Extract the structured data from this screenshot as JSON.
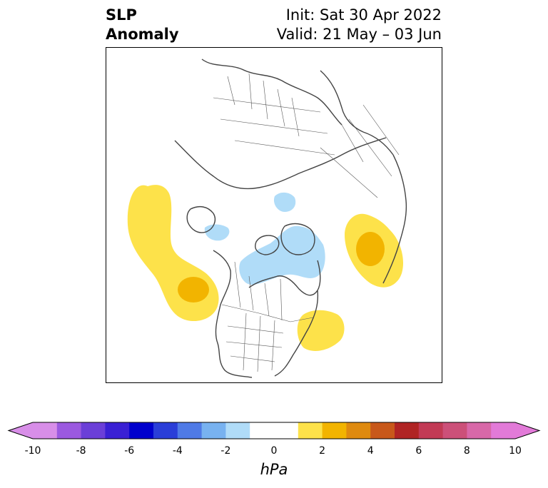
{
  "title": {
    "left_line1": "SLP",
    "left_line2": "Anomaly",
    "right_line1": "Init: Sat 30 Apr 2022",
    "right_line2": "Valid: 21 May – 03 Jun"
  },
  "colorbar": {
    "units": "hPa",
    "ticks": [
      "-10",
      "-8",
      "-6",
      "-4",
      "-2",
      "0",
      "2",
      "4",
      "6",
      "8",
      "10"
    ],
    "colors": [
      "#d88ee8",
      "#9b59e0",
      "#6b3fd8",
      "#3a20d4",
      "#0000cd",
      "#2a3ed8",
      "#4f7ae6",
      "#78b2f0",
      "#b0dcf8",
      "#ffffff",
      "#ffffff",
      "#fde24a",
      "#f2b400",
      "#df8a0f",
      "#c8581a",
      "#b02424",
      "#c23a55",
      "#cc5079",
      "#d868a8",
      "#e27ad8"
    ]
  },
  "map_data": {
    "type": "anomaly-contour-map",
    "projection": "north-polar-stereographic",
    "field": "sea-level-pressure anomaly",
    "features": [
      {
        "name": "positive-anomaly-north-pacific",
        "level": "2 to 3 hPa",
        "color": "#fde24a"
      },
      {
        "name": "positive-anomaly-core-north-pacific",
        "level": "3 to 4 hPa",
        "color": "#f2b400"
      },
      {
        "name": "positive-anomaly-eurasia",
        "level": "2 to 3 hPa",
        "color": "#fde24a"
      },
      {
        "name": "positive-anomaly-core-eurasia",
        "level": "3 to 4 hPa",
        "color": "#f2b400"
      },
      {
        "name": "positive-anomaly-north-atlantic",
        "level": "2 to 3 hPa",
        "color": "#fde24a"
      },
      {
        "name": "negative-anomaly-canadian-arctic",
        "level": "-2 to -1 hPa",
        "color": "#b0dcf8"
      },
      {
        "name": "negative-anomaly-alaska",
        "level": "-2 to -1 hPa",
        "color": "#b0dcf8"
      },
      {
        "name": "negative-anomaly-arctic-ocean",
        "level": "-2 to -1 hPa",
        "color": "#b0dcf8"
      }
    ]
  }
}
